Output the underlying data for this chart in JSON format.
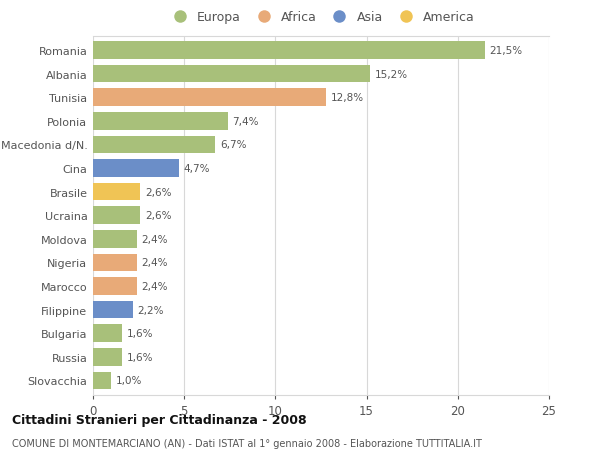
{
  "countries": [
    "Romania",
    "Albania",
    "Tunisia",
    "Polonia",
    "Macedonia d/N.",
    "Cina",
    "Brasile",
    "Ucraina",
    "Moldova",
    "Nigeria",
    "Marocco",
    "Filippine",
    "Bulgaria",
    "Russia",
    "Slovacchia"
  ],
  "values": [
    21.5,
    15.2,
    12.8,
    7.4,
    6.7,
    4.7,
    2.6,
    2.6,
    2.4,
    2.4,
    2.4,
    2.2,
    1.6,
    1.6,
    1.0
  ],
  "labels": [
    "21,5%",
    "15,2%",
    "12,8%",
    "7,4%",
    "6,7%",
    "4,7%",
    "2,6%",
    "2,6%",
    "2,4%",
    "2,4%",
    "2,4%",
    "2,2%",
    "1,6%",
    "1,6%",
    "1,0%"
  ],
  "continents": [
    "Europa",
    "Europa",
    "Africa",
    "Europa",
    "Europa",
    "Asia",
    "America",
    "Europa",
    "Europa",
    "Africa",
    "Africa",
    "Asia",
    "Europa",
    "Europa",
    "Europa"
  ],
  "colors": {
    "Europa": "#a8c07a",
    "Africa": "#e8aa78",
    "Asia": "#6b8ec8",
    "America": "#f0c455"
  },
  "legend_order": [
    "Europa",
    "Africa",
    "Asia",
    "America"
  ],
  "xlim": [
    0,
    25
  ],
  "xticks": [
    0,
    5,
    10,
    15,
    20,
    25
  ],
  "title": "Cittadini Stranieri per Cittadinanza - 2008",
  "subtitle": "COMUNE DI MONTEMARCIANO (AN) - Dati ISTAT al 1° gennaio 2008 - Elaborazione TUTTITALIA.IT",
  "bg_color": "#ffffff",
  "grid_color": "#d8d8d8",
  "bar_height": 0.75
}
